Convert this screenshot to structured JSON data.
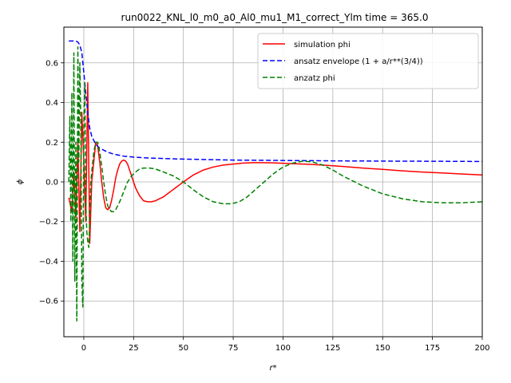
{
  "chart_data": {
    "type": "line",
    "title": "run0022_KNL_l0_m0_a0_Al0_mu1_M1_correct_Ylm time = 365.0",
    "xlabel": "r*",
    "ylabel": "ϕ",
    "xlim": [
      -10,
      200
    ],
    "ylim": [
      -0.78,
      0.78
    ],
    "grid": true,
    "legend_position": "top-right",
    "xticks": [
      0,
      25,
      50,
      75,
      100,
      125,
      150,
      175,
      200
    ],
    "yticks": [
      -0.6,
      -0.4,
      -0.2,
      0.0,
      0.2,
      0.4,
      0.6
    ],
    "ytick_labels": [
      "−0.6",
      "−0.4",
      "−0.2",
      "0.0",
      "0.2",
      "0.4",
      "0.6"
    ],
    "series": [
      {
        "name": "simulation phi",
        "color": "#ff0000",
        "dash": "solid",
        "x": [
          -7.5,
          -6,
          -5,
          -4,
          -3,
          -2,
          -1,
          0,
          1,
          2,
          3,
          4,
          5,
          6,
          7,
          8,
          9,
          10,
          11,
          12,
          13,
          14,
          15,
          16,
          17,
          18,
          19,
          20,
          21,
          22,
          23,
          24,
          25,
          26,
          28,
          30,
          32,
          34,
          36,
          38,
          40,
          42,
          44,
          46,
          48,
          50,
          55,
          60,
          65,
          70,
          75,
          80,
          85,
          90,
          95,
          100,
          110,
          120,
          130,
          140,
          150,
          160,
          170,
          180,
          190,
          200
        ],
        "y": [
          -0.08,
          -0.15,
          0.05,
          -0.18,
          0.2,
          -0.25,
          0.35,
          0.1,
          -0.2,
          0.5,
          -0.31,
          0.0,
          0.1,
          0.2,
          0.18,
          0.1,
          0.0,
          -0.08,
          -0.13,
          -0.14,
          -0.13,
          -0.09,
          -0.04,
          0.02,
          0.06,
          0.09,
          0.105,
          0.11,
          0.105,
          0.09,
          0.06,
          0.03,
          0.0,
          -0.03,
          -0.07,
          -0.095,
          -0.1,
          -0.1,
          -0.095,
          -0.085,
          -0.075,
          -0.06,
          -0.045,
          -0.03,
          -0.015,
          0.0,
          0.035,
          0.06,
          0.075,
          0.085,
          0.09,
          0.095,
          0.097,
          0.097,
          0.096,
          0.094,
          0.09,
          0.085,
          0.078,
          0.07,
          0.063,
          0.056,
          0.05,
          0.045,
          0.04,
          0.035
        ]
      },
      {
        "name": "ansatz envelope (1 + a/r**(3/4))",
        "color": "#0000ff",
        "dash": "dashed",
        "x": [
          -7.5,
          -6,
          -5,
          -4,
          -3,
          -2,
          -1,
          0,
          1,
          2,
          3,
          4,
          5,
          6,
          7,
          8,
          10,
          12,
          15,
          20,
          25,
          30,
          40,
          50,
          60,
          75,
          100,
          125,
          150,
          175,
          200
        ],
        "y": [
          0.71,
          0.71,
          0.71,
          0.71,
          0.705,
          0.69,
          0.65,
          0.55,
          0.45,
          0.35,
          0.27,
          0.23,
          0.21,
          0.19,
          0.18,
          0.17,
          0.16,
          0.15,
          0.14,
          0.13,
          0.125,
          0.122,
          0.118,
          0.115,
          0.113,
          0.11,
          0.108,
          0.106,
          0.105,
          0.104,
          0.103
        ]
      },
      {
        "name": "anzatz phi",
        "color": "#008000",
        "dash": "dashed",
        "x": [
          -7.5,
          -7,
          -6.5,
          -6,
          -5.5,
          -5,
          -4.5,
          -4,
          -3.5,
          -3,
          -2.5,
          -2,
          -1.5,
          -1,
          -0.5,
          0,
          0.5,
          1,
          1.5,
          2,
          2.5,
          3,
          3.5,
          4,
          5,
          6,
          7,
          8,
          9,
          10,
          11,
          12,
          13,
          14,
          15,
          16,
          17,
          18,
          20,
          22,
          24,
          26,
          28,
          30,
          33,
          36,
          40,
          45,
          50,
          55,
          60,
          65,
          70,
          74,
          78,
          82,
          86,
          90,
          95,
          100,
          105,
          110,
          115,
          120,
          125,
          130,
          140,
          150,
          160,
          170,
          180,
          190,
          200
        ],
        "y": [
          0.0,
          0.33,
          -0.2,
          0.45,
          -0.4,
          0.65,
          -0.5,
          0.2,
          -0.7,
          0.68,
          0.1,
          0.6,
          0.3,
          -0.5,
          -0.63,
          0.3,
          0.5,
          -0.1,
          -0.25,
          -0.3,
          -0.33,
          -0.2,
          0.0,
          0.05,
          0.15,
          0.2,
          0.2,
          0.15,
          0.08,
          0.0,
          -0.07,
          -0.12,
          -0.14,
          -0.15,
          -0.15,
          -0.14,
          -0.12,
          -0.1,
          -0.05,
          0.0,
          0.03,
          0.05,
          0.065,
          0.07,
          0.07,
          0.065,
          0.05,
          0.03,
          0.0,
          -0.04,
          -0.075,
          -0.1,
          -0.11,
          -0.11,
          -0.1,
          -0.075,
          -0.04,
          -0.005,
          0.04,
          0.075,
          0.095,
          0.105,
          0.1,
          0.085,
          0.06,
          0.03,
          -0.02,
          -0.06,
          -0.085,
          -0.1,
          -0.105,
          -0.105,
          -0.1
        ]
      }
    ]
  }
}
